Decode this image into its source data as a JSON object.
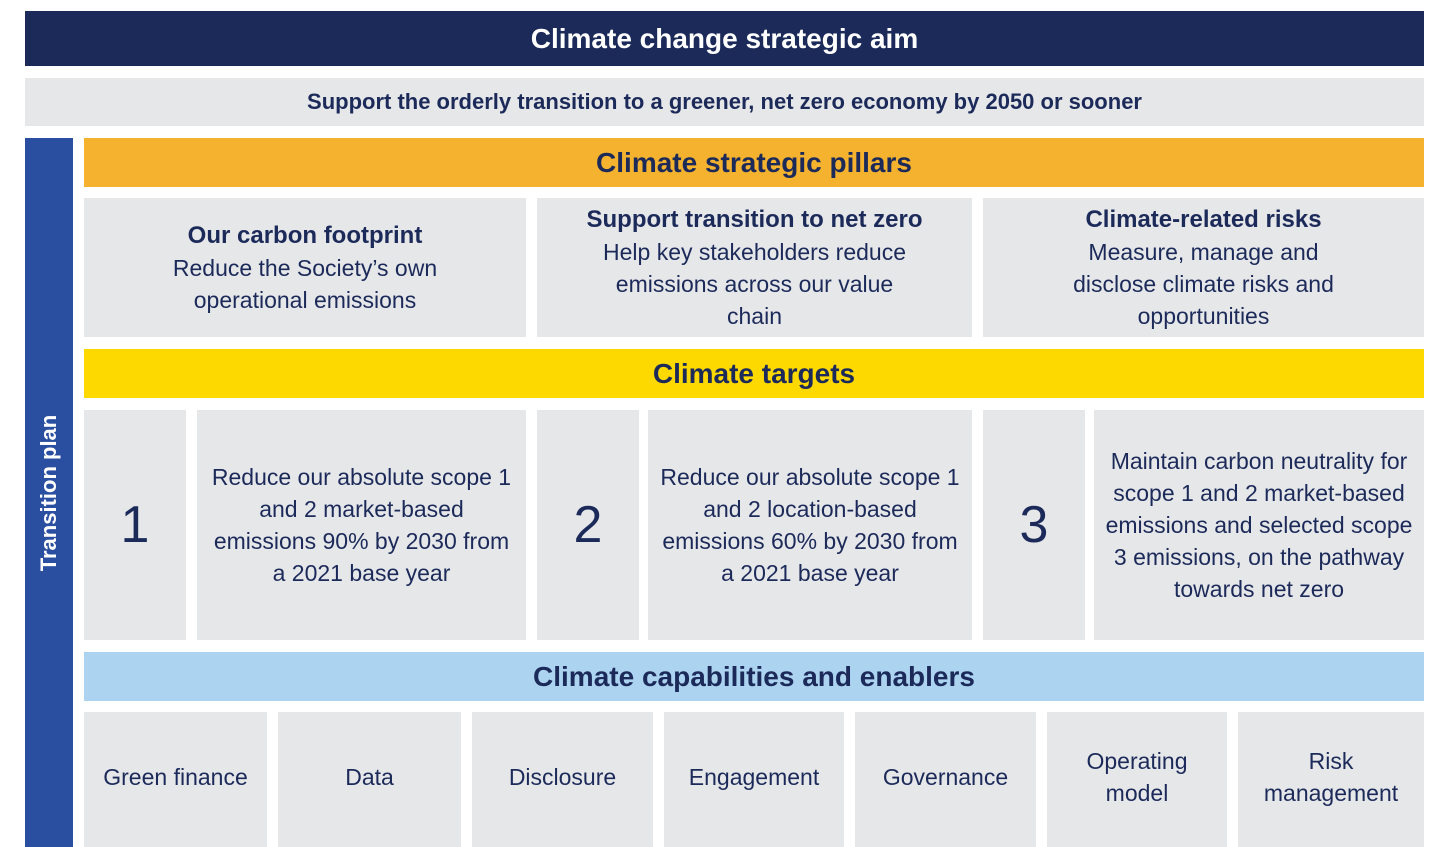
{
  "header": {
    "title": "Climate change strategic aim",
    "aim": "Support the orderly transition to a greener, net zero economy by 2050 or sooner"
  },
  "side_label": "Transition plan",
  "pillars": {
    "title": "Climate strategic pillars",
    "items": [
      {
        "title": "Our carbon footprint",
        "text": "Reduce the Society’s own operational emissions"
      },
      {
        "title": "Support transition to net zero",
        "text": "Help key stakeholders reduce emissions across our value chain"
      },
      {
        "title": "Climate-related risks",
        "text": "Measure, manage and disclose climate risks and opportunities"
      }
    ]
  },
  "targets": {
    "title": "Climate targets",
    "items": [
      {
        "number": 1,
        "text": "Reduce our absolute scope 1 and 2 market-based emissions 90% by 2030 from a 2021 base year"
      },
      {
        "number": 2,
        "text": "Reduce our absolute scope 1 and 2 location-based emissions 60% by 2030 from a 2021 base year"
      },
      {
        "number": 3,
        "text": "Maintain carbon neutrality for scope 1 and 2 market-based emissions and selected scope 3 emissions, on the pathway towards net zero"
      }
    ]
  },
  "capabilities": {
    "title": "Climate capabilities and enablers",
    "items": [
      "Green finance",
      "Data",
      "Disclosure",
      "Engagement",
      "Governance",
      "Operating model",
      "Risk management"
    ]
  }
}
